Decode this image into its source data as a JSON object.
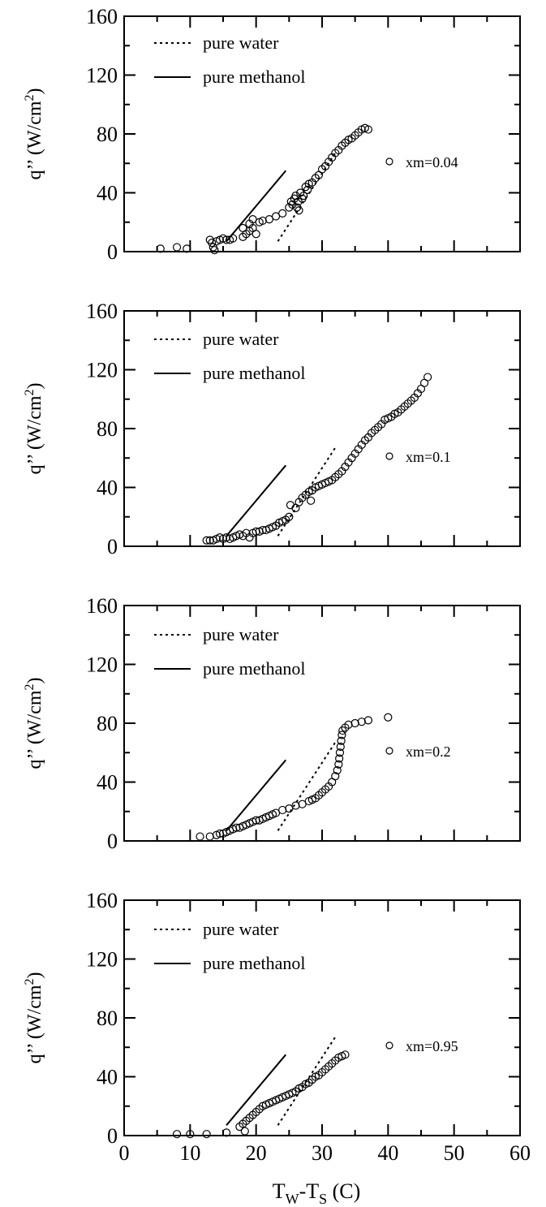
{
  "figure": {
    "xlabel_main": "T",
    "xlabel_sub1": "W",
    "xlabel_mid": "-T",
    "xlabel_sub2": "S",
    "xlabel_tail": "  (C)",
    "ylabel_main": "q’’ (W/cm",
    "ylabel_sup": "2",
    "ylabel_tail": ")",
    "legend_water": "pure water",
    "legend_methanol": "pure methanol",
    "x_ticks": [
      "0",
      "10",
      "20",
      "30",
      "40",
      "50",
      "60"
    ],
    "y_ticks": [
      "0",
      "40",
      "80",
      "120",
      "160"
    ]
  },
  "chart_data": [
    {
      "type": "scatter",
      "xlim": [
        0,
        60
      ],
      "ylim": [
        0,
        160
      ],
      "annotation": "xm=0.04",
      "legend_position": "top-left",
      "lines": {
        "pure_water": [
          [
            23.3,
            7
          ],
          [
            32.0,
            67
          ]
        ],
        "pure_methanol": [
          [
            15.5,
            7
          ],
          [
            24.5,
            55
          ]
        ]
      },
      "series": [
        {
          "points": [
            [
              5.5,
              2
            ],
            [
              8,
              3
            ],
            [
              9.5,
              2
            ],
            [
              13,
              8
            ],
            [
              13.3,
              6
            ],
            [
              13.5,
              3
            ],
            [
              13.7,
              1
            ],
            [
              14,
              7
            ],
            [
              14.5,
              8
            ],
            [
              15,
              9
            ],
            [
              15.5,
              8
            ],
            [
              16,
              8
            ],
            [
              16.5,
              9
            ],
            [
              18,
              10
            ],
            [
              18,
              16
            ],
            [
              18.5,
              12
            ],
            [
              19,
              14
            ],
            [
              19,
              19
            ],
            [
              19.5,
              16
            ],
            [
              20,
              12
            ],
            [
              19.5,
              22
            ],
            [
              20.5,
              20
            ],
            [
              21,
              21
            ],
            [
              22,
              22
            ],
            [
              23,
              24
            ],
            [
              24,
              26
            ],
            [
              25,
              30
            ],
            [
              25.3,
              34
            ],
            [
              25.5,
              32
            ],
            [
              25.8,
              36
            ],
            [
              26,
              38
            ],
            [
              26.2,
              30
            ],
            [
              26.4,
              34
            ],
            [
              26.5,
              28
            ],
            [
              26.7,
              40
            ],
            [
              27,
              36
            ],
            [
              27.2,
              38
            ],
            [
              27.5,
              44
            ],
            [
              27.8,
              42
            ],
            [
              28,
              46
            ],
            [
              28.5,
              47
            ],
            [
              29,
              50
            ],
            [
              29.5,
              52
            ],
            [
              30,
              56
            ],
            [
              30.5,
              58
            ],
            [
              31,
              61
            ],
            [
              31.5,
              64
            ],
            [
              32,
              67
            ],
            [
              32.5,
              69
            ],
            [
              33,
              72
            ],
            [
              33.5,
              74
            ],
            [
              34,
              76
            ],
            [
              34.5,
              77
            ],
            [
              35,
              79
            ],
            [
              35.5,
              81
            ],
            [
              36,
              83
            ],
            [
              36.5,
              84
            ],
            [
              37,
              83
            ]
          ]
        }
      ]
    },
    {
      "type": "scatter",
      "xlim": [
        0,
        60
      ],
      "ylim": [
        0,
        160
      ],
      "annotation": "xm=0.1",
      "legend_position": "top-left",
      "lines": {
        "pure_water": [
          [
            23.3,
            7
          ],
          [
            32.0,
            67
          ]
        ],
        "pure_methanol": [
          [
            15.5,
            7
          ],
          [
            24.5,
            55
          ]
        ]
      },
      "series": [
        {
          "points": [
            [
              12.5,
              4
            ],
            [
              13,
              4
            ],
            [
              13.5,
              4
            ],
            [
              14,
              5
            ],
            [
              14.5,
              6
            ],
            [
              15,
              5
            ],
            [
              15.5,
              6
            ],
            [
              16,
              5
            ],
            [
              16.5,
              6
            ],
            [
              17,
              7
            ],
            [
              17.5,
              8
            ],
            [
              18,
              7
            ],
            [
              18.5,
              9
            ],
            [
              19,
              6
            ],
            [
              19.5,
              9
            ],
            [
              20,
              10
            ],
            [
              20.5,
              10
            ],
            [
              21,
              11
            ],
            [
              21.5,
              11
            ],
            [
              22,
              12
            ],
            [
              22.5,
              13
            ],
            [
              23,
              14
            ],
            [
              23.5,
              16
            ],
            [
              24,
              17
            ],
            [
              24.5,
              18
            ],
            [
              25,
              20
            ],
            [
              25.2,
              28
            ],
            [
              26,
              26
            ],
            [
              26.5,
              30
            ],
            [
              27,
              33
            ],
            [
              27.5,
              35
            ],
            [
              28,
              37
            ],
            [
              28.3,
              31
            ],
            [
              28.5,
              38
            ],
            [
              29,
              40
            ],
            [
              29.5,
              41
            ],
            [
              30,
              42
            ],
            [
              30.5,
              43
            ],
            [
              31,
              44
            ],
            [
              31.5,
              45
            ],
            [
              32,
              47
            ],
            [
              32.5,
              49
            ],
            [
              33,
              51
            ],
            [
              33.5,
              54
            ],
            [
              34,
              57
            ],
            [
              34.5,
              60
            ],
            [
              35,
              63
            ],
            [
              35.5,
              66
            ],
            [
              36,
              69
            ],
            [
              36.5,
              72
            ],
            [
              37,
              74
            ],
            [
              37.5,
              77
            ],
            [
              38,
              79
            ],
            [
              38.5,
              81
            ],
            [
              39,
              83
            ],
            [
              39.5,
              86
            ],
            [
              40,
              87
            ],
            [
              40.5,
              88
            ],
            [
              41,
              90
            ],
            [
              41.5,
              91
            ],
            [
              42,
              93
            ],
            [
              42.5,
              95
            ],
            [
              43,
              97
            ],
            [
              43.5,
              99
            ],
            [
              44,
              101
            ],
            [
              44.5,
              104
            ],
            [
              45,
              107
            ],
            [
              45.5,
              111
            ],
            [
              46,
              115
            ]
          ]
        }
      ]
    },
    {
      "type": "scatter",
      "xlim": [
        0,
        60
      ],
      "ylim": [
        0,
        160
      ],
      "annotation": "xm=0.2",
      "legend_position": "top-left",
      "lines": {
        "pure_water": [
          [
            23.3,
            7
          ],
          [
            32.0,
            67
          ]
        ],
        "pure_methanol": [
          [
            15.5,
            7
          ],
          [
            24.5,
            55
          ]
        ]
      },
      "series": [
        {
          "points": [
            [
              11.5,
              3
            ],
            [
              13,
              3
            ],
            [
              14,
              4
            ],
            [
              14.5,
              5
            ],
            [
              15,
              5
            ],
            [
              15.5,
              6
            ],
            [
              16,
              7
            ],
            [
              16.5,
              8
            ],
            [
              17,
              9
            ],
            [
              17.5,
              9
            ],
            [
              18,
              10
            ],
            [
              18.5,
              11
            ],
            [
              19,
              12
            ],
            [
              19.5,
              13
            ],
            [
              20,
              14
            ],
            [
              20.5,
              14
            ],
            [
              21,
              15
            ],
            [
              21.5,
              16
            ],
            [
              22,
              17
            ],
            [
              22.5,
              18
            ],
            [
              23,
              19
            ],
            [
              24,
              21
            ],
            [
              25,
              22
            ],
            [
              26,
              24
            ],
            [
              27,
              25
            ],
            [
              28,
              27
            ],
            [
              28.5,
              28
            ],
            [
              29,
              29
            ],
            [
              29.5,
              31
            ],
            [
              30,
              33
            ],
            [
              30.5,
              35
            ],
            [
              31,
              37
            ],
            [
              31.5,
              40
            ],
            [
              32,
              44
            ],
            [
              32.3,
              48
            ],
            [
              32.5,
              52
            ],
            [
              32.6,
              56
            ],
            [
              32.7,
              60
            ],
            [
              32.8,
              64
            ],
            [
              32.9,
              68
            ],
            [
              33,
              72
            ],
            [
              33.1,
              75
            ],
            [
              33.5,
              77
            ],
            [
              34,
              79
            ],
            [
              35,
              80
            ],
            [
              36,
              81
            ],
            [
              37,
              82
            ],
            [
              40,
              84
            ]
          ]
        }
      ]
    },
    {
      "type": "scatter",
      "xlim": [
        0,
        60
      ],
      "ylim": [
        0,
        160
      ],
      "annotation": "xm=0.95",
      "legend_position": "top-left",
      "lines": {
        "pure_water": [
          [
            23.3,
            7
          ],
          [
            32.0,
            67
          ]
        ],
        "pure_methanol": [
          [
            15.5,
            7
          ],
          [
            24.5,
            55
          ]
        ]
      },
      "series": [
        {
          "points": [
            [
              8,
              1
            ],
            [
              10,
              1
            ],
            [
              12.5,
              1
            ],
            [
              15.5,
              2
            ],
            [
              17.5,
              6
            ],
            [
              18,
              8
            ],
            [
              18.3,
              3
            ],
            [
              18.5,
              10
            ],
            [
              19,
              12
            ],
            [
              19.5,
              14
            ],
            [
              20,
              16
            ],
            [
              20.5,
              18
            ],
            [
              21,
              20
            ],
            [
              21.5,
              21
            ],
            [
              22,
              22
            ],
            [
              22.5,
              23
            ],
            [
              23,
              24
            ],
            [
              23.5,
              25
            ],
            [
              24,
              26
            ],
            [
              24.5,
              27
            ],
            [
              25,
              28
            ],
            [
              25.5,
              29
            ],
            [
              26,
              30
            ],
            [
              26.5,
              32
            ],
            [
              27,
              33
            ],
            [
              27.5,
              35
            ],
            [
              28,
              36
            ],
            [
              28.5,
              38
            ],
            [
              29,
              40
            ],
            [
              29.5,
              41
            ],
            [
              30,
              43
            ],
            [
              30.5,
              45
            ],
            [
              31,
              47
            ],
            [
              31.5,
              49
            ],
            [
              32,
              51
            ],
            [
              32.5,
              53
            ],
            [
              33,
              54
            ],
            [
              33.5,
              55
            ]
          ]
        }
      ]
    }
  ]
}
